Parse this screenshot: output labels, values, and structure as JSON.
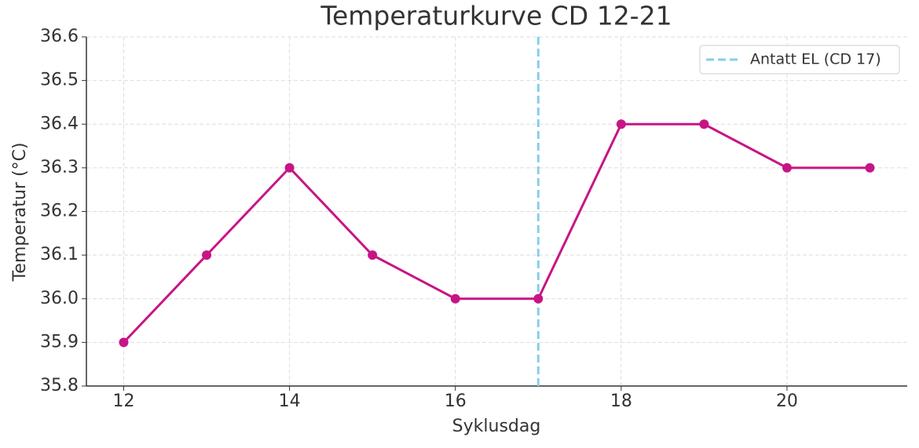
{
  "chart_data": {
    "type": "line",
    "title": "Temperaturkurve CD 12-21",
    "xlabel": "Syklusdag",
    "ylabel": "Temperatur (°C)",
    "x": [
      12,
      13,
      14,
      15,
      16,
      17,
      18,
      19,
      20,
      21
    ],
    "series": [
      {
        "color": "#c71585",
        "values": [
          35.9,
          36.1,
          36.3,
          36.1,
          36.0,
          36.0,
          36.4,
          36.4,
          36.3,
          36.3
        ]
      }
    ],
    "vlines": [
      {
        "x": 17,
        "label": "Antatt EL (CD 17)",
        "color": "#87ceeb",
        "dashed": true
      }
    ],
    "xlim": [
      11.55,
      21.45
    ],
    "ylim": [
      35.8,
      36.6
    ],
    "xticks": [
      12,
      14,
      16,
      18,
      20
    ],
    "yticks": [
      35.8,
      35.9,
      {
        "value": 36,
        "label": "36.0"
      },
      36.1,
      36.2,
      36.3,
      36.4,
      36.5,
      36.6
    ],
    "grid": true,
    "legend": "upper right"
  }
}
